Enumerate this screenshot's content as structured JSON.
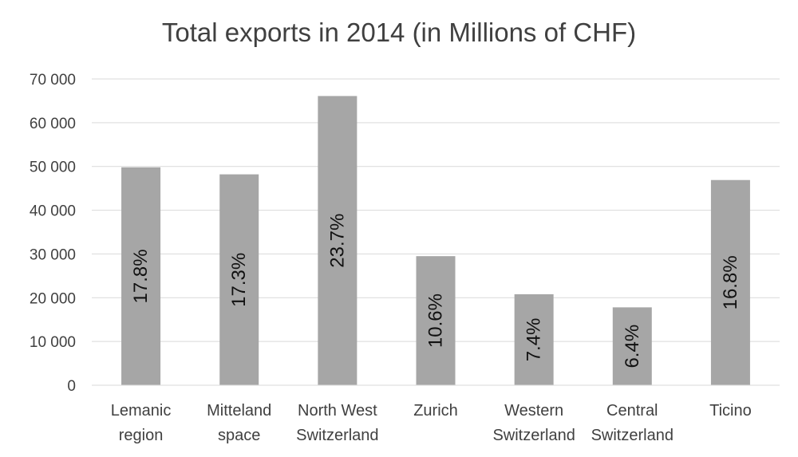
{
  "chart_data": {
    "type": "bar",
    "title": "Total exports in 2014 (in Millions of CHF)",
    "xlabel": "",
    "ylabel": "",
    "categories": [
      [
        "Lemanic",
        "region"
      ],
      [
        "Mitteland",
        "space"
      ],
      [
        "North West",
        "Switzerland"
      ],
      [
        "Zurich"
      ],
      [
        "Western",
        "Switzerland"
      ],
      [
        "Central",
        "Switzerland"
      ],
      [
        "Ticino"
      ]
    ],
    "values": [
      49800,
      48200,
      66100,
      29500,
      20800,
      17800,
      46900
    ],
    "data_labels": [
      "17.8%",
      "17.3%",
      "23.7%",
      "10.6%",
      "7.4%",
      "6.4%",
      "16.8%"
    ],
    "ylim": [
      0,
      70000
    ],
    "yticks": [
      0,
      10000,
      20000,
      30000,
      40000,
      50000,
      60000,
      70000
    ],
    "ytick_labels": [
      "0",
      "10 000",
      "20 000",
      "30 000",
      "40 000",
      "50 000",
      "60 000",
      "70 000"
    ],
    "grid": true,
    "colors": {
      "bar": "#a6a6a6",
      "grid": "#d9d9d9",
      "text": "#404040",
      "data_label": "#111111"
    }
  }
}
